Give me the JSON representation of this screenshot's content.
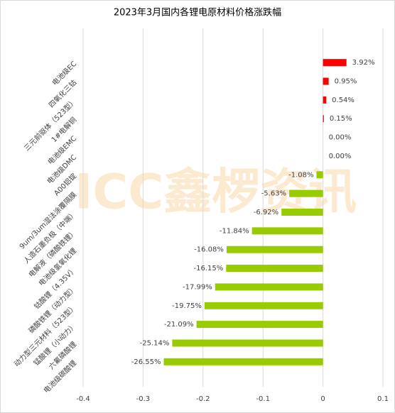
{
  "chart_data": {
    "type": "barh",
    "title": "2023年3月国内各锂电原材料价格涨跌幅",
    "watermark": "ICC鑫椤资讯",
    "categories": [
      "电池级EC",
      "四氧化三钴",
      "三元前驱体（523型）",
      "1#电解铜",
      "电池级EMC",
      "电池级DMC",
      "A00铝锭",
      "9um/3um湿法涂覆隔膜",
      "人造石墨负极（中端）",
      "电解液（磷酸铁锂）",
      "电池级氢氧化锂",
      "钴酸锂（4.35V）",
      "磷酸铁锂（动力型）",
      "动力型三元材料（523型）",
      "锰酸锂（小动力）",
      "六氟磷酸锂",
      "电池级碳酸锂"
    ],
    "values": [
      0.0392,
      0.0095,
      0.0054,
      0.0015,
      0,
      0,
      -0.0108,
      -0.0563,
      -0.0692,
      -0.1184,
      -0.1608,
      -0.1615,
      -0.1799,
      -0.1975,
      -0.2109,
      -0.2514,
      -0.2655
    ],
    "value_labels": [
      "3.92%",
      "0.95%",
      "0.54%",
      "0.15%",
      "0.00%",
      "0.00%",
      "-1.08%",
      "-5.63%",
      "-6.92%",
      "-11.84%",
      "-16.08%",
      "-16.15%",
      "-17.99%",
      "-19.75%",
      "-21.09%",
      "-25.14%",
      "-26.55%"
    ],
    "positive_color": "#ff0000",
    "negative_color": "#99cc00",
    "xlim": [
      -0.4,
      0.1
    ],
    "xticks": [
      -0.4,
      -0.3,
      -0.2,
      -0.1,
      0,
      0.1
    ],
    "grid": true
  }
}
